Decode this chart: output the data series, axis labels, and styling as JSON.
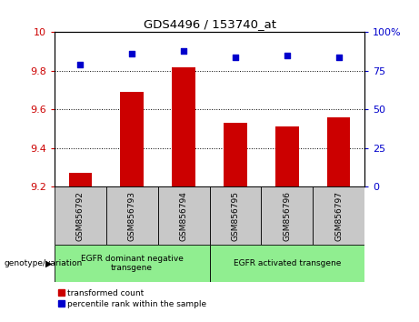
{
  "title": "GDS4496 / 153740_at",
  "samples": [
    "GSM856792",
    "GSM856793",
    "GSM856794",
    "GSM856795",
    "GSM856796",
    "GSM856797"
  ],
  "bar_values": [
    9.27,
    9.69,
    9.82,
    9.53,
    9.51,
    9.56
  ],
  "scatter_values": [
    79,
    86,
    88,
    84,
    85,
    84
  ],
  "bar_color": "#cc0000",
  "scatter_color": "#0000cc",
  "ylim_left": [
    9.2,
    10.0
  ],
  "ylim_right": [
    0,
    100
  ],
  "yticks_left": [
    9.2,
    9.4,
    9.6,
    9.8
  ],
  "ytick_top_left": 10.0,
  "ytick_top_left_label": "10",
  "yticks_right": [
    0,
    25,
    50,
    75
  ],
  "ytick_top_right": 100,
  "ytick_top_right_label": "100%",
  "grid_values": [
    9.4,
    9.6,
    9.8
  ],
  "group1_label": "EGFR dominant negative\ntransgene",
  "group2_label": "EGFR activated transgene",
  "group1_indices": [
    0,
    1,
    2
  ],
  "group2_indices": [
    3,
    4,
    5
  ],
  "genotype_label": "genotype/variation",
  "legend1_label": "transformed count",
  "legend2_label": "percentile rank within the sample",
  "bg_gray": "#c8c8c8",
  "bg_green": "#90ee90",
  "bar_width": 0.45
}
